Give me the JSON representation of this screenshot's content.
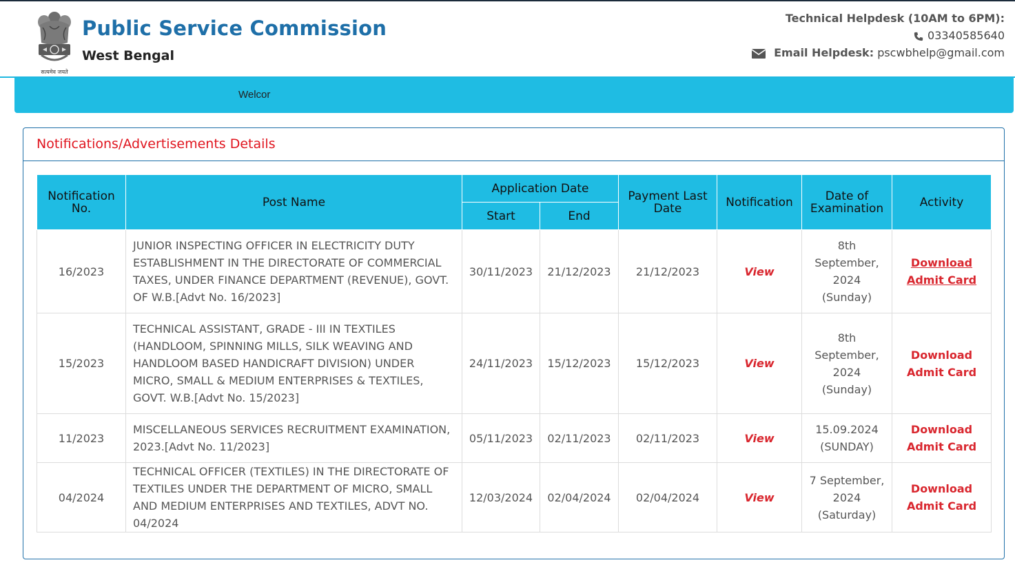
{
  "header": {
    "title": "Public Service Commission",
    "subtitle": "West Bengal",
    "emblem_motto": "सत्यमेव जयते",
    "helpdesk_title": "Technical Helpdesk (10AM to 6PM):",
    "phone": "03340585640",
    "email_label": "Email Helpdesk:",
    "email": "pscwbhelp@gmail.com"
  },
  "nav": {
    "marquee_text": "Welcor"
  },
  "panel": {
    "heading": "Notifications/Advertisements Details"
  },
  "table": {
    "headers": {
      "notification_no": "Notification No.",
      "post_name": "Post Name",
      "application_date": "Application Date",
      "start": "Start",
      "end": "End",
      "payment_last_date": "Payment Last Date",
      "notification": "Notification",
      "date_of_examination": "Date of Examination",
      "activity": "Activity"
    },
    "rows": [
      {
        "no": "16/2023",
        "post": "JUNIOR INSPECTING OFFICER IN ELECTRICITY DUTY ESTABLISHMENT IN THE DIRECTORATE OF COMMERCIAL TAXES, UNDER FINANCE DEPARTMENT (REVENUE), GOVT. OF W.B.[Advt No. 16/2023]",
        "start": "30/11/2023",
        "end": "21/12/2023",
        "payment": "21/12/2023",
        "notification": "View",
        "exam_date": "8th September, 2024 (Sunday)",
        "activity": "Download Admit Card"
      },
      {
        "no": "15/2023",
        "post": "TECHNICAL ASSISTANT, GRADE - III IN TEXTILES (HANDLOOM, SPINNING MILLS, SILK WEAVING AND HANDLOOM BASED HANDICRAFT DIVISION) UNDER MICRO, SMALL & MEDIUM ENTERPRISES & TEXTILES, GOVT. W.B.[Advt No. 15/2023]",
        "start": "24/11/2023",
        "end": "15/12/2023",
        "payment": "15/12/2023",
        "notification": "View",
        "exam_date": "8th September, 2024 (Sunday)",
        "activity": "Download Admit Card"
      },
      {
        "no": "11/2023",
        "post": "MISCELLANEOUS SERVICES RECRUITMENT EXAMINATION, 2023.[Advt No. 11/2023]",
        "start": "05/11/2023",
        "end": "02/11/2023",
        "payment": "02/11/2023",
        "notification": "View",
        "exam_date": "15.09.2024 (SUNDAY)",
        "activity": "Download Admit Card"
      },
      {
        "no": "04/2024",
        "post": "TECHNICAL OFFICER (TEXTILES) IN THE DIRECTORATE OF TEXTILES UNDER THE DEPARTMENT OF MICRO, SMALL AND MEDIUM ENTERPRISES AND TEXTILES, ADVT NO. 04/2024",
        "start": "12/03/2024",
        "end": "02/04/2024",
        "payment": "02/04/2024",
        "notification": "View",
        "exam_date": "7 September, 2024 (Saturday)",
        "activity": "Download Admit Card"
      }
    ]
  },
  "colors": {
    "brand_blue": "#1e6fa8",
    "nav_cyan": "#1fbce3",
    "link_red": "#d9262e",
    "heading_red": "#e0141e"
  },
  "icons": {
    "phone": "phone-icon",
    "email": "envelope-icon",
    "emblem": "emblem-icon"
  }
}
